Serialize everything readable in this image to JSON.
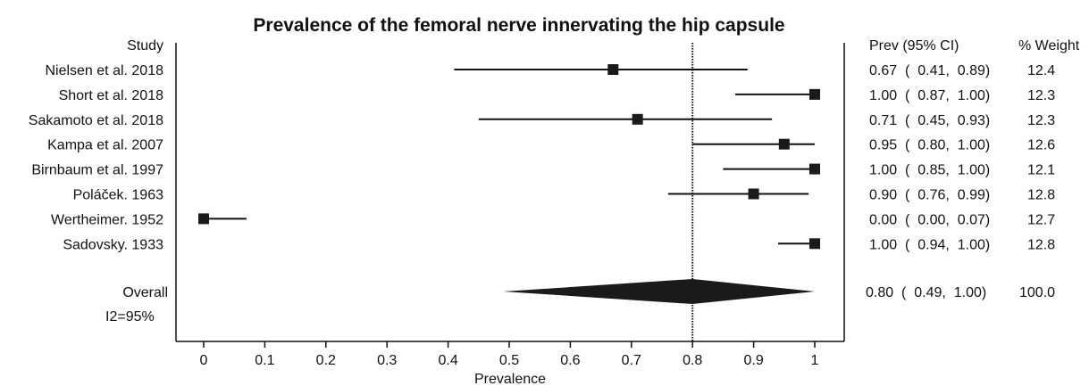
{
  "chart_data": {
    "type": "forest",
    "title": "Prevalence of the femoral nerve innervating the hip capsule",
    "xlabel": "Prevalence",
    "xlim": [
      -0.05,
      1.05
    ],
    "xticks": [
      0,
      0.1,
      0.2,
      0.3,
      0.4,
      0.5,
      0.6,
      0.7,
      0.8,
      0.9,
      1
    ],
    "xtick_labels": [
      "0",
      "0.1",
      "0.2",
      "0.3",
      "0.4",
      "0.5",
      "0.6",
      "0.7",
      "0.8",
      "0.9",
      "1"
    ],
    "ref_line": 0.8,
    "headers": {
      "study": "Study",
      "ci": "Prev (95% CI)",
      "weight": "% Weight"
    },
    "studies": [
      {
        "name": "Nielsen et al. 2018",
        "est": 0.67,
        "lo": 0.41,
        "hi": 0.89,
        "weight": "12.4",
        "ci_text": "0.67  (  0.41,  0.89)"
      },
      {
        "name": "Short et al. 2018",
        "est": 1.0,
        "lo": 0.87,
        "hi": 1.0,
        "weight": "12.3",
        "ci_text": "1.00  (  0.87,  1.00)"
      },
      {
        "name": "Sakamoto et al. 2018",
        "est": 0.71,
        "lo": 0.45,
        "hi": 0.93,
        "weight": "12.3",
        "ci_text": "0.71  (  0.45,  0.93)"
      },
      {
        "name": "Kampa et al. 2007",
        "est": 0.95,
        "lo": 0.8,
        "hi": 1.0,
        "weight": "12.6",
        "ci_text": "0.95  (  0.80,  1.00)"
      },
      {
        "name": "Birnbaum et al. 1997",
        "est": 1.0,
        "lo": 0.85,
        "hi": 1.0,
        "weight": "12.1",
        "ci_text": "1.00  (  0.85,  1.00)"
      },
      {
        "name": "Poláček. 1963",
        "est": 0.9,
        "lo": 0.76,
        "hi": 0.99,
        "weight": "12.8",
        "ci_text": "0.90  (  0.76,  0.99)"
      },
      {
        "name": "Wertheimer. 1952",
        "est": 0.0,
        "lo": 0.0,
        "hi": 0.07,
        "weight": "12.7",
        "ci_text": "0.00  (  0.00,  0.07)"
      },
      {
        "name": "Sadovsky. 1933",
        "est": 1.0,
        "lo": 0.94,
        "hi": 1.0,
        "weight": "12.8",
        "ci_text": "1.00  (  0.94,  1.00)"
      }
    ],
    "overall": {
      "name": "Overall",
      "est": 0.8,
      "lo": 0.49,
      "hi": 1.0,
      "weight": "100.0",
      "ci_text": "0.80  (  0.49,  1.00)"
    },
    "heterogeneity": "I2=95%",
    "colors": {
      "marker": "#1a1a1a",
      "line": "#111111"
    }
  }
}
